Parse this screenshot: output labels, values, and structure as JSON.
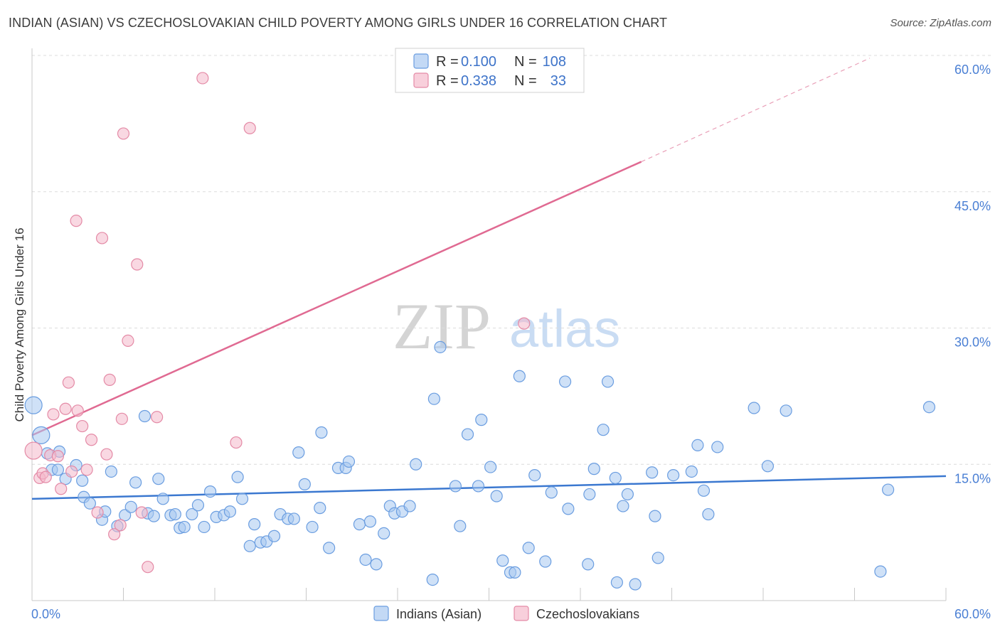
{
  "title": "INDIAN (ASIAN) VS CZECHOSLOVAKIAN CHILD POVERTY AMONG GIRLS UNDER 16 CORRELATION CHART",
  "source": "Source: ZipAtlas.com",
  "watermark": {
    "zip": "ZIP",
    "atlas": "atlas"
  },
  "legend": {
    "rows": [
      {
        "r_label": "R =",
        "r_value": "0.100",
        "n_label": "N =",
        "n_value": "108",
        "color": "#a8c8f0"
      },
      {
        "r_label": "R =",
        "r_value": "0.338",
        "n_label": "N =",
        "n_value": "33",
        "color": "#f4b8ca"
      }
    ]
  },
  "bottom_legend": [
    {
      "label": "Indians (Asian)",
      "color": "#a8c8f0"
    },
    {
      "label": "Czechoslovakians",
      "color": "#f4b8ca"
    }
  ],
  "chart_data": {
    "type": "scatter",
    "title": "INDIAN (ASIAN) VS CZECHOSLOVAKIAN CHILD POVERTY AMONG GIRLS UNDER 16 CORRELATION CHART",
    "xlabel": "",
    "ylabel": "Child Poverty Among Girls Under 16",
    "xlim": [
      0,
      60
    ],
    "ylim": [
      0,
      60
    ],
    "x_tick_labels": [
      "0.0%",
      "60.0%"
    ],
    "y_ticks": [
      15,
      30,
      45,
      60
    ],
    "y_tick_labels": [
      "15.0%",
      "30.0%",
      "45.0%",
      "60.0%"
    ],
    "grid": true,
    "legend_position": "top-center",
    "series": [
      {
        "name": "Indians (Asian)",
        "color": "#a8c8f0",
        "stroke": "#6a9de0",
        "trend": {
          "x": [
            0,
            60
          ],
          "y": [
            11.2,
            13.7
          ]
        },
        "points": [
          [
            0.1,
            21.5
          ],
          [
            0.6,
            18.2
          ],
          [
            1.0,
            16.2
          ],
          [
            1.8,
            16.4
          ],
          [
            1.3,
            14.4
          ],
          [
            1.7,
            14.4
          ],
          [
            2.2,
            13.4
          ],
          [
            2.9,
            14.9
          ],
          [
            3.3,
            13.2
          ],
          [
            3.4,
            11.4
          ],
          [
            3.8,
            10.7
          ],
          [
            4.6,
            8.9
          ],
          [
            4.8,
            9.8
          ],
          [
            5.2,
            14.2
          ],
          [
            5.6,
            8.2
          ],
          [
            6.1,
            9.4
          ],
          [
            6.5,
            10.3
          ],
          [
            6.8,
            13.0
          ],
          [
            7.4,
            20.3
          ],
          [
            7.6,
            9.6
          ],
          [
            8.0,
            9.3
          ],
          [
            8.3,
            13.4
          ],
          [
            8.6,
            11.2
          ],
          [
            9.1,
            9.4
          ],
          [
            9.4,
            9.5
          ],
          [
            9.7,
            8.0
          ],
          [
            10.0,
            8.1
          ],
          [
            10.5,
            9.5
          ],
          [
            10.9,
            10.5
          ],
          [
            11.3,
            8.1
          ],
          [
            11.7,
            12.0
          ],
          [
            12.1,
            9.2
          ],
          [
            12.6,
            9.4
          ],
          [
            13.0,
            9.8
          ],
          [
            13.5,
            13.6
          ],
          [
            13.8,
            11.2
          ],
          [
            14.3,
            6.0
          ],
          [
            14.6,
            8.4
          ],
          [
            15.0,
            6.4
          ],
          [
            15.4,
            6.5
          ],
          [
            15.9,
            7.1
          ],
          [
            16.3,
            9.5
          ],
          [
            16.8,
            9.0
          ],
          [
            17.2,
            9.0
          ],
          [
            17.5,
            16.3
          ],
          [
            17.9,
            12.8
          ],
          [
            18.4,
            8.1
          ],
          [
            18.9,
            10.2
          ],
          [
            19.0,
            18.5
          ],
          [
            19.5,
            5.8
          ],
          [
            20.1,
            14.6
          ],
          [
            20.6,
            14.6
          ],
          [
            20.8,
            15.3
          ],
          [
            21.5,
            8.4
          ],
          [
            21.9,
            4.5
          ],
          [
            22.2,
            8.7
          ],
          [
            22.6,
            4.0
          ],
          [
            23.1,
            7.4
          ],
          [
            23.5,
            10.4
          ],
          [
            23.8,
            9.6
          ],
          [
            24.3,
            9.8
          ],
          [
            24.8,
            10.4
          ],
          [
            25.2,
            15.0
          ],
          [
            26.3,
            2.3
          ],
          [
            26.4,
            22.2
          ],
          [
            26.8,
            27.9
          ],
          [
            27.8,
            12.6
          ],
          [
            28.1,
            8.2
          ],
          [
            28.6,
            18.3
          ],
          [
            29.3,
            12.6
          ],
          [
            29.5,
            19.9
          ],
          [
            30.1,
            14.7
          ],
          [
            30.5,
            11.5
          ],
          [
            30.9,
            4.4
          ],
          [
            31.4,
            3.1
          ],
          [
            31.7,
            3.1
          ],
          [
            32.0,
            24.7
          ],
          [
            32.6,
            5.8
          ],
          [
            33.0,
            13.8
          ],
          [
            33.7,
            4.3
          ],
          [
            34.1,
            11.9
          ],
          [
            35.0,
            24.1
          ],
          [
            35.2,
            10.1
          ],
          [
            36.5,
            4.0
          ],
          [
            36.6,
            11.7
          ],
          [
            36.9,
            14.5
          ],
          [
            37.5,
            18.8
          ],
          [
            37.8,
            24.1
          ],
          [
            38.3,
            13.5
          ],
          [
            38.8,
            10.4
          ],
          [
            39.1,
            11.7
          ],
          [
            39.6,
            1.8
          ],
          [
            40.7,
            14.1
          ],
          [
            40.9,
            9.3
          ],
          [
            41.1,
            4.7
          ],
          [
            42.1,
            13.8
          ],
          [
            43.3,
            14.2
          ],
          [
            43.7,
            17.1
          ],
          [
            44.1,
            12.1
          ],
          [
            44.4,
            9.5
          ],
          [
            45.0,
            16.9
          ],
          [
            47.4,
            21.2
          ],
          [
            48.3,
            14.8
          ],
          [
            49.5,
            20.9
          ],
          [
            55.7,
            3.2
          ],
          [
            56.2,
            12.2
          ],
          [
            58.9,
            21.3
          ],
          [
            38.4,
            2.0
          ]
        ]
      },
      {
        "name": "Czechoslovakians",
        "color": "#f4b8ca",
        "stroke": "#e48aa6",
        "trend": {
          "x": [
            0,
            40
          ],
          "y": [
            18.2,
            48.3
          ],
          "dashed_to": {
            "x": 55,
            "y": 59.7
          }
        },
        "points": [
          [
            0.1,
            16.5
          ],
          [
            0.5,
            13.5
          ],
          [
            0.7,
            14.0
          ],
          [
            0.9,
            13.6
          ],
          [
            1.2,
            16.0
          ],
          [
            1.4,
            20.5
          ],
          [
            1.7,
            15.9
          ],
          [
            1.9,
            12.3
          ],
          [
            2.2,
            21.1
          ],
          [
            2.4,
            24.0
          ],
          [
            2.6,
            14.2
          ],
          [
            2.9,
            41.8
          ],
          [
            3.0,
            20.9
          ],
          [
            3.3,
            19.2
          ],
          [
            3.6,
            14.4
          ],
          [
            3.9,
            17.7
          ],
          [
            4.3,
            9.7
          ],
          [
            4.6,
            39.9
          ],
          [
            4.9,
            16.1
          ],
          [
            5.1,
            24.3
          ],
          [
            5.4,
            7.3
          ],
          [
            5.8,
            8.3
          ],
          [
            5.9,
            20.0
          ],
          [
            6.0,
            51.4
          ],
          [
            6.3,
            28.6
          ],
          [
            6.9,
            37.0
          ],
          [
            7.2,
            9.7
          ],
          [
            7.6,
            3.7
          ],
          [
            8.2,
            20.2
          ],
          [
            11.2,
            57.5
          ],
          [
            13.4,
            17.4
          ],
          [
            14.3,
            52.0
          ],
          [
            32.3,
            30.5
          ]
        ]
      }
    ]
  }
}
